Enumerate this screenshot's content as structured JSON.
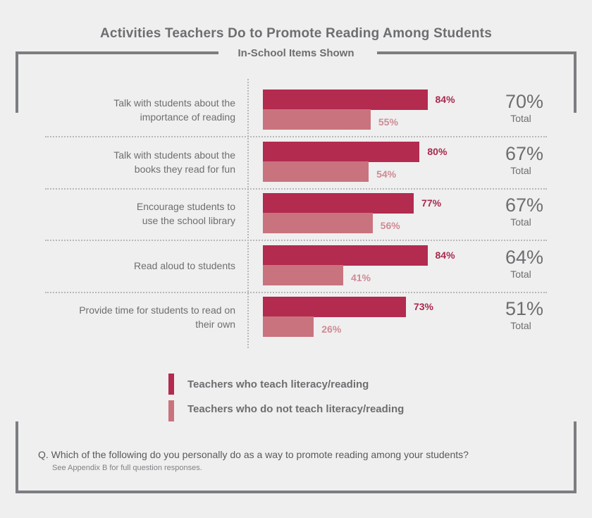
{
  "chart_data": {
    "type": "bar",
    "orientation": "horizontal",
    "title": "Activities Teachers Do to Promote Reading Among Students",
    "subtitle": "In-School Items Shown",
    "categories": [
      [
        "Talk with students about the",
        "importance of reading"
      ],
      [
        "Talk with students about the",
        "books they read for fun"
      ],
      [
        "Encourage students to",
        "use the school library"
      ],
      [
        "Read aloud to students"
      ],
      [
        "Provide time for students to read on",
        "their own"
      ]
    ],
    "series": [
      {
        "name": "Teachers who teach literacy/reading",
        "values": [
          84,
          80,
          77,
          84,
          73
        ],
        "labels": [
          "84%",
          "80%",
          "77%",
          "84%",
          "73%"
        ],
        "color": "#b32b4f"
      },
      {
        "name": "Teachers who do not teach literacy/reading",
        "values": [
          55,
          54,
          56,
          41,
          26
        ],
        "labels": [
          "55%",
          "54%",
          "56%",
          "41%",
          "26%"
        ],
        "color": "#c9737e"
      }
    ],
    "totals": [
      "70%",
      "67%",
      "67%",
      "64%",
      "51%"
    ],
    "total_label": "Total",
    "xlim": [
      0,
      100
    ],
    "grid": true,
    "legend_position": "bottom"
  },
  "footer": {
    "question": "Q. Which of the following do you personally do as a way to promote reading among your students?",
    "note": "See Appendix B for full question responses."
  }
}
